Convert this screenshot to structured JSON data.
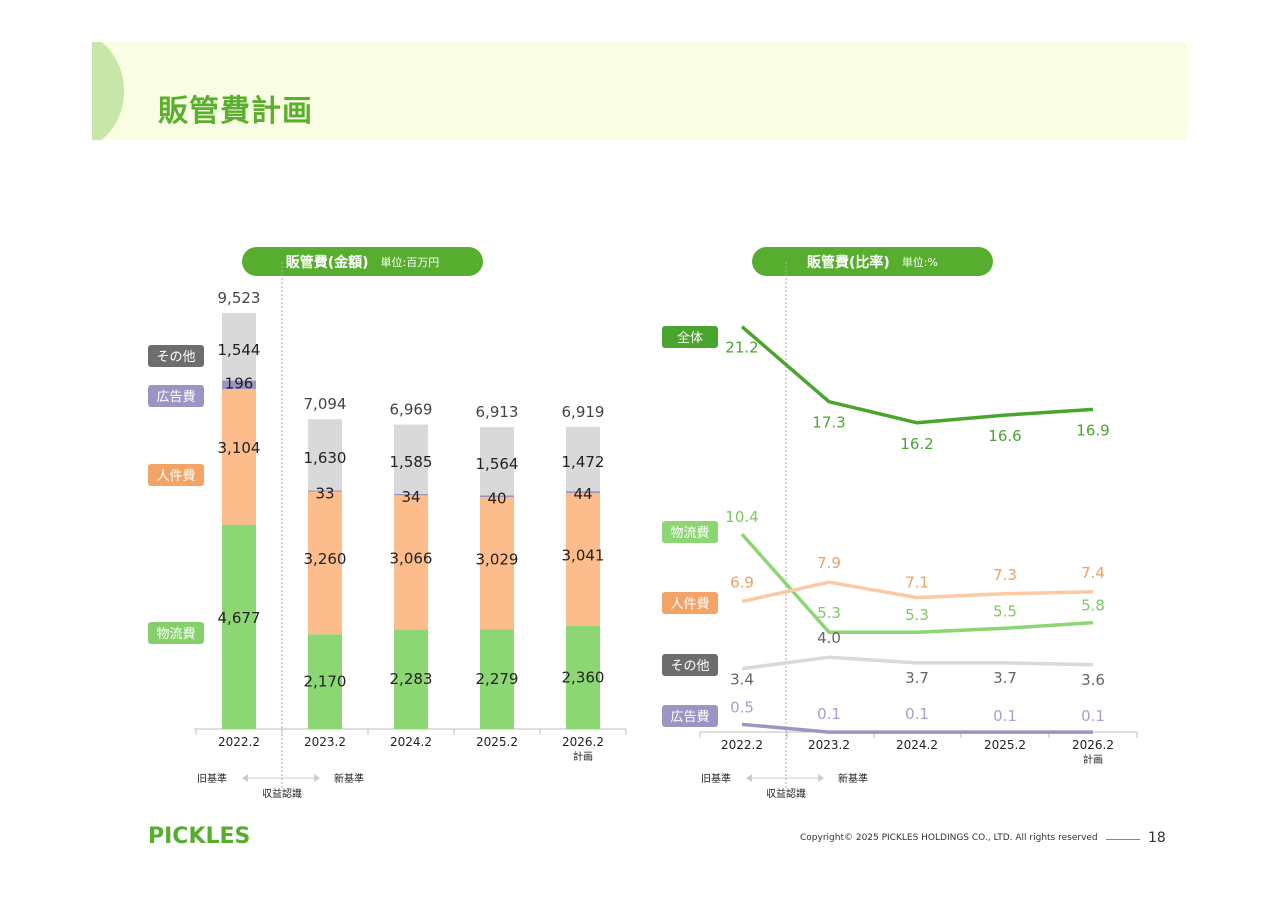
{
  "page": {
    "title": "販管費計画",
    "copyright": "Copyright© 2025 PICKLES HOLDINGS CO., LTD. All rights reserved",
    "page_number": "18",
    "logo_text": "PICKLES"
  },
  "colors": {
    "logistics": "#8cd673",
    "personnel": "#fdbc8b",
    "advertising": "#9c95c4",
    "other": "#d9d9d9",
    "total": "#4aa52e",
    "header_band": "#f8fde3",
    "accent": "#56ad2e"
  },
  "notes": {
    "old_basis": "旧基準",
    "new_basis": "新基準",
    "revenue_recognition": "収益認識"
  },
  "chart_data": [
    {
      "type": "bar",
      "stacked": true,
      "title": "販管費(金額)",
      "unit": "単位:百万円",
      "categories": [
        "2022.2",
        "2023.2",
        "2024.2",
        "2025.2",
        "2026.2"
      ],
      "category_sublabels": [
        "",
        "",
        "",
        "",
        "計画"
      ],
      "series": [
        {
          "name": "物流費",
          "values": [
            4677,
            2170,
            2283,
            2279,
            2360
          ],
          "labels": [
            "4,677",
            "2,170",
            "2,283",
            "2,279",
            "2,360"
          ]
        },
        {
          "name": "人件費",
          "values": [
            3104,
            3260,
            3066,
            3029,
            3041
          ],
          "labels": [
            "3,104",
            "3,260",
            "3,066",
            "3,029",
            "3,041"
          ]
        },
        {
          "name": "広告費",
          "values": [
            196,
            33,
            34,
            40,
            44
          ],
          "labels": [
            "196",
            "33",
            "34",
            "40",
            "44"
          ]
        },
        {
          "name": "その他",
          "values": [
            1544,
            1630,
            1585,
            1564,
            1472
          ],
          "labels": [
            "1,544",
            "1,630",
            "1,585",
            "1,564",
            "1,472"
          ]
        }
      ],
      "totals": [
        "9,523",
        "7,094",
        "6,969",
        "6,913",
        "6,919"
      ],
      "ylim": [
        0,
        9523
      ],
      "legend_position": "left"
    },
    {
      "type": "line",
      "title": "販管費(比率)",
      "unit": "単位:%",
      "categories": [
        "2022.2",
        "2023.2",
        "2024.2",
        "2025.2",
        "2026.2"
      ],
      "category_sublabels": [
        "",
        "",
        "",
        "",
        "計画"
      ],
      "series": [
        {
          "name": "全体",
          "values": [
            21.2,
            17.3,
            16.2,
            16.6,
            16.9
          ]
        },
        {
          "name": "物流費",
          "values": [
            10.4,
            5.3,
            5.3,
            5.5,
            5.8
          ]
        },
        {
          "name": "人件費",
          "values": [
            6.9,
            7.9,
            7.1,
            7.3,
            7.4
          ]
        },
        {
          "name": "その他",
          "values": [
            3.4,
            4.0,
            3.7,
            3.7,
            3.6
          ]
        },
        {
          "name": "広告費",
          "values": [
            0.5,
            0.1,
            0.1,
            0.1,
            0.1
          ]
        }
      ],
      "legend_position": "left"
    }
  ]
}
